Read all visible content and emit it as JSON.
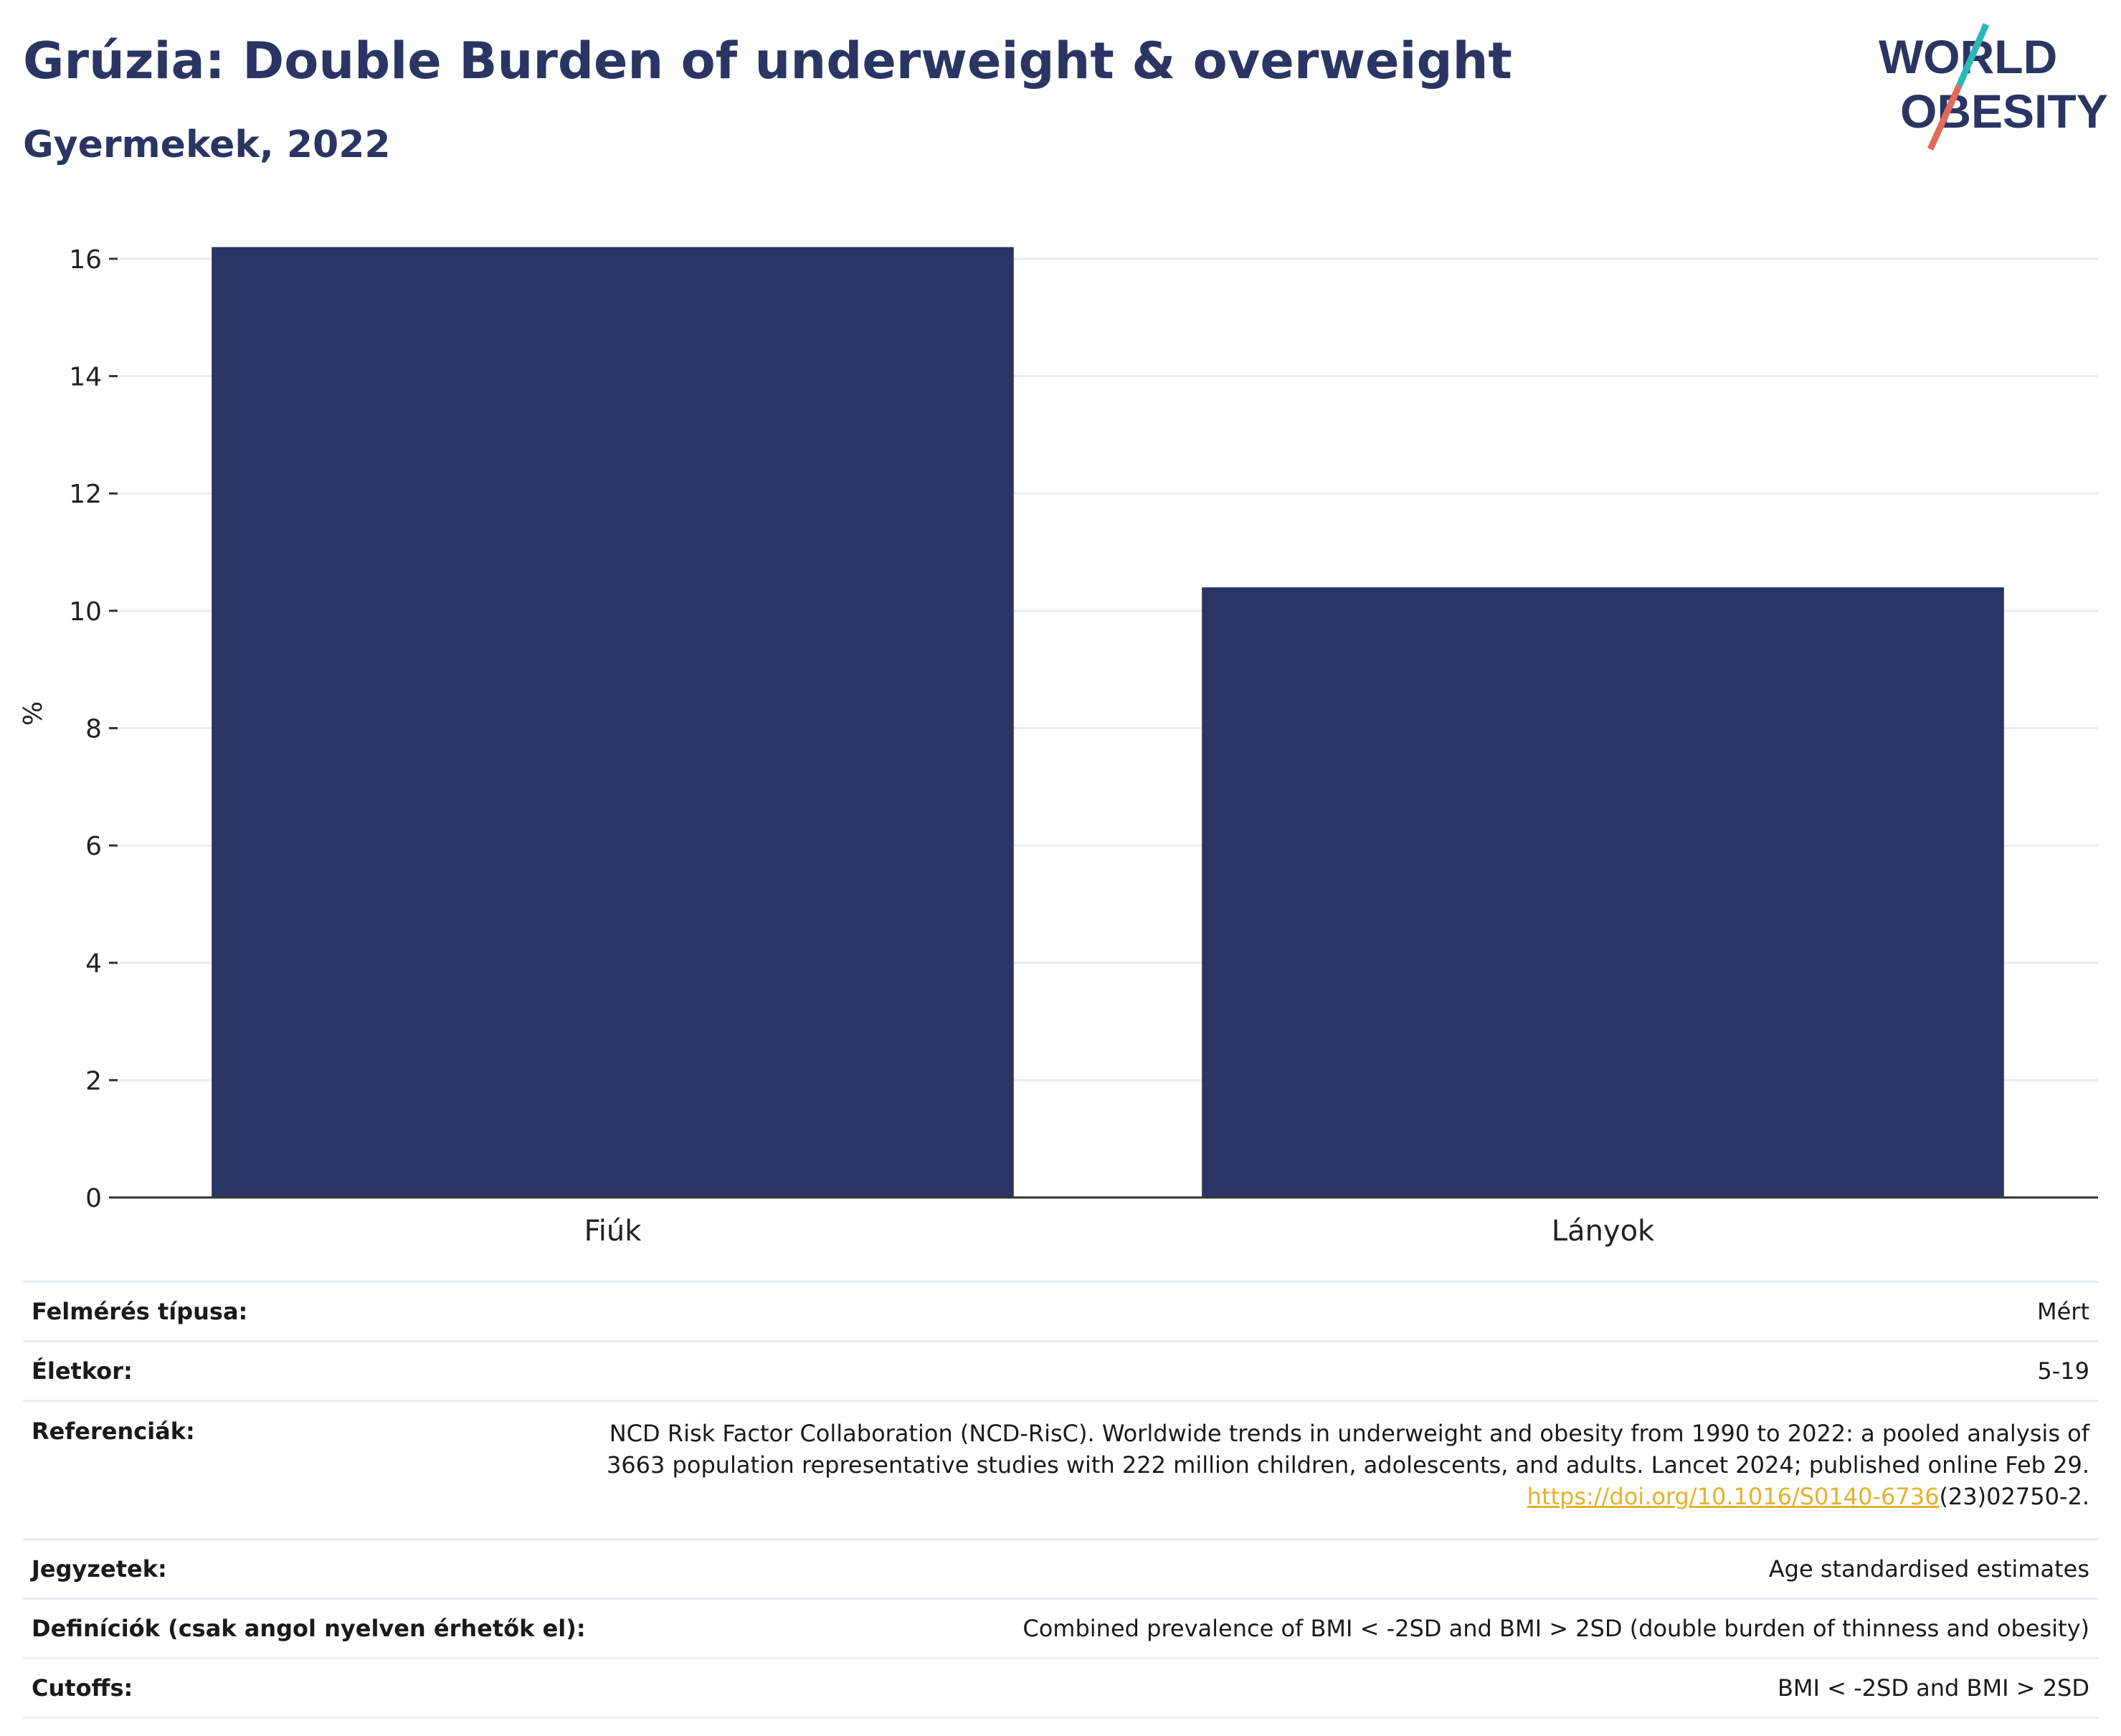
{
  "header": {
    "title": "Grúzia: Double Burden of underweight & overweight",
    "subtitle": "Gyermekek, 2022"
  },
  "logo": {
    "line1": "WORLD",
    "line2": "OBESITY"
  },
  "colors": {
    "bar": "#2b3563",
    "title": "#2b3563",
    "logo_teal": "#2fb6b6",
    "logo_coral": "#e26a5a",
    "link": "#e2b22a",
    "grid": "#e9edf1"
  },
  "chart_data": {
    "type": "bar",
    "categories": [
      "Fiúk",
      "Lányok"
    ],
    "values": [
      16.2,
      10.4
    ],
    "ylabel": "%",
    "ylim": [
      0,
      16.5
    ],
    "yticks": [
      0,
      2,
      4,
      6,
      8,
      10,
      12,
      14,
      16
    ],
    "grid": true
  },
  "meta": {
    "survey_type": {
      "label": "Felmérés típusa:",
      "value": "Mért"
    },
    "age": {
      "label": "Életkor:",
      "value": "5-19"
    },
    "references": {
      "label": "Referenciák:",
      "line1": "NCD Risk Factor Collaboration (NCD-RisC). Worldwide trends in underweight and obesity from 1990 to 2022: a pooled analysis of",
      "line2": "3663 population representative studies with 222 million children, adolescents, and adults. Lancet 2024; published online Feb 29.",
      "link_text": "https://doi.org/10.1016/S0140-6736",
      "link_tail": "(23)02750-2."
    },
    "notes": {
      "label": "Jegyzetek:",
      "value": "Age standardised estimates"
    },
    "definitions": {
      "label": "Definíciók (csak angol nyelven érhetők el):",
      "value": "Combined prevalence of BMI < -2SD and BMI > 2SD (double burden of thinness and obesity)"
    },
    "cutoffs": {
      "label": "Cutoffs:",
      "value": "BMI < -2SD and BMI > 2SD"
    }
  }
}
